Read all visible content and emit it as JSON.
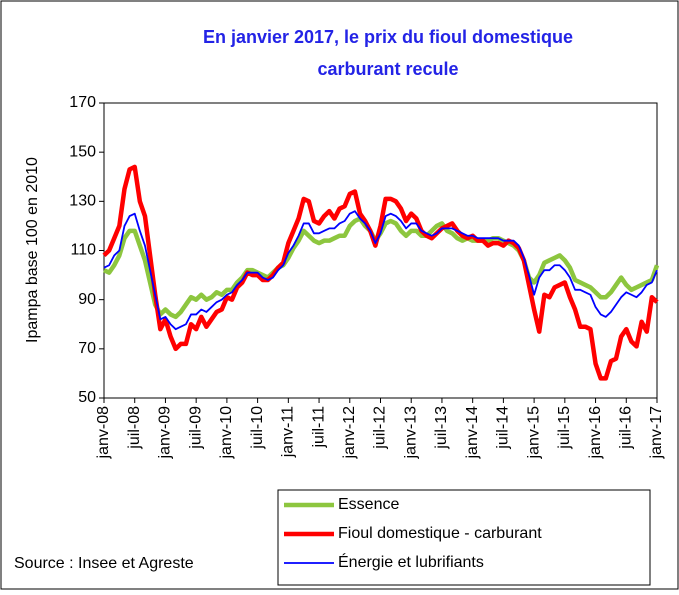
{
  "chart_data": {
    "type": "line",
    "title": [
      "En janvier 2017, le prix du fioul domestique",
      "carburant recule"
    ],
    "y_label": "Ipampa base 100 en 2010",
    "source": "Source : Insee et Agreste",
    "categories": [
      "janv-08",
      null,
      null,
      null,
      null,
      null,
      "juil-08",
      null,
      null,
      null,
      null,
      null,
      "janv-09",
      null,
      null,
      null,
      null,
      null,
      "juil-09",
      null,
      null,
      null,
      null,
      null,
      "janv-10",
      null,
      null,
      null,
      null,
      null,
      "juil-10",
      null,
      null,
      null,
      null,
      null,
      "janv-11",
      null,
      null,
      null,
      null,
      null,
      "juil-11",
      null,
      null,
      null,
      null,
      null,
      "janv-12",
      null,
      null,
      null,
      null,
      null,
      "juil-12",
      null,
      null,
      null,
      null,
      null,
      "janv-13",
      null,
      null,
      null,
      null,
      null,
      "juil-13",
      null,
      null,
      null,
      null,
      null,
      "janv-14",
      null,
      null,
      null,
      null,
      null,
      "juil-14",
      null,
      null,
      null,
      null,
      null,
      "janv-15",
      null,
      null,
      null,
      null,
      null,
      "juil-15",
      null,
      null,
      null,
      null,
      null,
      "janv-16",
      null,
      null,
      null,
      null,
      null,
      "juil-16",
      null,
      null,
      null,
      null,
      null,
      "janv-17"
    ],
    "series": [
      {
        "name": "Essence",
        "color": "#8dc63f",
        "width": 4.5,
        "values": [
          102,
          101,
          104,
          108,
          115,
          118,
          118,
          112,
          106,
          97,
          88,
          84,
          86,
          84,
          83,
          85,
          88,
          91,
          90,
          92,
          90,
          91,
          93,
          92,
          94,
          94,
          97,
          99,
          102,
          102,
          101,
          100,
          99,
          101,
          103,
          104,
          107,
          111,
          114,
          118,
          116,
          114,
          113,
          114,
          114,
          115,
          116,
          116,
          120,
          122,
          123,
          120,
          118,
          114,
          117,
          121,
          122,
          121,
          118,
          116,
          118,
          118,
          116,
          116,
          118,
          120,
          121,
          118,
          117,
          115,
          114,
          115,
          114,
          114,
          114,
          114,
          115,
          115,
          114,
          113,
          112,
          110,
          106,
          99,
          97,
          100,
          105,
          106,
          107,
          108,
          106,
          103,
          98,
          97,
          96,
          95,
          93,
          91,
          91,
          93,
          96,
          99,
          96,
          94,
          95,
          96,
          97,
          98,
          104
        ]
      },
      {
        "name": "Fioul domestique - carburant",
        "color": "#ff0000",
        "width": 4.5,
        "values": [
          108,
          110,
          115,
          120,
          135,
          143,
          144,
          130,
          124,
          108,
          92,
          78,
          82,
          75,
          70,
          72,
          72,
          80,
          78,
          83,
          79,
          82,
          85,
          86,
          91,
          90,
          95,
          97,
          101,
          100,
          100,
          98,
          98,
          100,
          103,
          105,
          113,
          118,
          123,
          131,
          130,
          122,
          121,
          124,
          126,
          123,
          127,
          128,
          133,
          134,
          125,
          122,
          118,
          112,
          120,
          131,
          131,
          130,
          127,
          122,
          125,
          123,
          118,
          116,
          115,
          117,
          119,
          120,
          121,
          118,
          116,
          115,
          116,
          114,
          114,
          112,
          113,
          113,
          112,
          114,
          113,
          111,
          106,
          96,
          86,
          77,
          92,
          91,
          95,
          96,
          97,
          91,
          86,
          79,
          79,
          78,
          64,
          58,
          58,
          65,
          66,
          75,
          78,
          73,
          71,
          81,
          77,
          91,
          89
        ]
      },
      {
        "name": "Énergie et lubrifiants",
        "color": "#0000ff",
        "width": 1.8,
        "values": [
          103,
          104,
          108,
          110,
          120,
          124,
          125,
          118,
          112,
          102,
          92,
          82,
          83,
          80,
          78,
          79,
          80,
          84,
          84,
          86,
          85,
          87,
          89,
          90,
          92,
          93,
          96,
          98,
          101,
          101,
          101,
          99,
          98,
          99,
          102,
          104,
          109,
          112,
          116,
          121,
          121,
          117,
          117,
          118,
          119,
          119,
          121,
          122,
          125,
          126,
          123,
          121,
          118,
          113,
          117,
          124,
          125,
          124,
          122,
          119,
          121,
          121,
          118,
          117,
          116,
          117,
          119,
          119,
          119,
          118,
          117,
          116,
          116,
          115,
          115,
          115,
          115,
          115,
          114,
          114,
          114,
          112,
          107,
          100,
          92,
          99,
          102,
          102,
          104,
          104,
          102,
          99,
          94,
          94,
          93,
          92,
          87,
          84,
          83,
          85,
          88,
          91,
          93,
          92,
          91,
          93,
          96,
          97,
          102
        ]
      }
    ],
    "ylim": [
      50,
      170
    ],
    "yticks": [
      50,
      70,
      90,
      110,
      130,
      150,
      170
    ],
    "grid": false
  }
}
